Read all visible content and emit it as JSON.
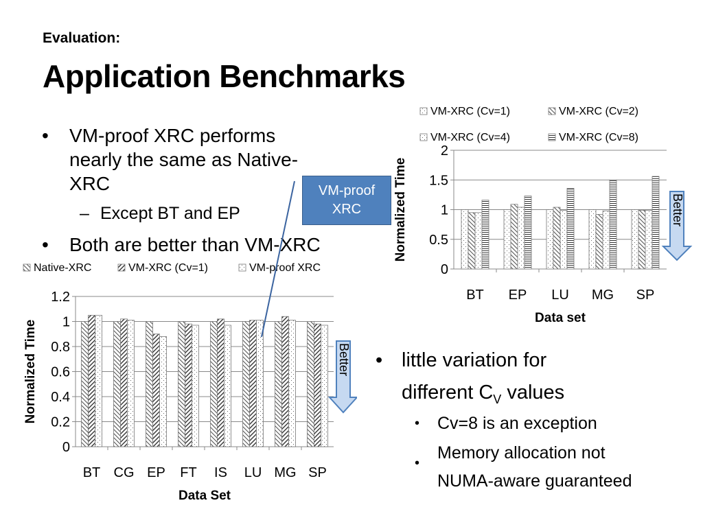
{
  "slide": {
    "subtitle": "Evaluation:",
    "title": "Application Benchmarks",
    "bullets": [
      {
        "text1": "VM-proof XRC performs",
        "text2": "nearly the same as Native-",
        "text3": "XRC"
      },
      {
        "sub": "Except BT and EP"
      },
      {
        "text": "Both are better than VM-XRC"
      }
    ],
    "right_bullets": {
      "line1": "little variation for",
      "line2_pre": "different C",
      "line2_sub": "V",
      "line2_post": " values",
      "sub1": "Cv=8 is an exception",
      "sub2_line1": "Memory allocation not",
      "sub2_line2": "NUMA-aware guaranteed"
    },
    "callout": {
      "line1": "VM-proof",
      "line2": "XRC"
    },
    "better_label": "Better"
  },
  "chart_data": [
    {
      "type": "bar",
      "id": "left",
      "categories": [
        "BT",
        "CG",
        "EP",
        "FT",
        "IS",
        "LU",
        "MG",
        "SP"
      ],
      "series": [
        {
          "name": "Native-XRC",
          "values": [
            1.0,
            1.0,
            1.0,
            1.0,
            1.0,
            1.0,
            1.0,
            1.0
          ]
        },
        {
          "name": "VM-XRC (Cv=1)",
          "values": [
            1.05,
            1.02,
            0.9,
            0.98,
            1.02,
            1.01,
            1.04,
            0.98
          ]
        },
        {
          "name": "VM-proof XRC",
          "values": [
            1.05,
            1.01,
            0.88,
            0.97,
            0.97,
            1.01,
            1.01,
            0.97
          ]
        }
      ],
      "xlabel": "Data Set",
      "ylabel": "Normalized Time",
      "ylim": [
        0,
        1.2
      ],
      "yticks": [
        "0",
        "0.2",
        "0.4",
        "0.6",
        "0.8",
        "1",
        "1.2"
      ],
      "grid": true,
      "legend": "top"
    },
    {
      "type": "bar",
      "id": "right",
      "categories": [
        "BT",
        "EP",
        "LU",
        "MG",
        "SP"
      ],
      "series": [
        {
          "name": "VM-XRC (Cv=1)",
          "values": [
            1.0,
            1.0,
            1.0,
            1.0,
            1.0
          ]
        },
        {
          "name": "VM-XRC (Cv=2)",
          "values": [
            0.95,
            1.09,
            1.04,
            0.92,
            0.99
          ]
        },
        {
          "name": "VM-XRC (Cv=4)",
          "values": [
            0.95,
            1.04,
            0.99,
            0.98,
            0.99
          ]
        },
        {
          "name": "VM-XRC (Cv=8)",
          "values": [
            1.16,
            1.23,
            1.36,
            1.5,
            1.56
          ]
        }
      ],
      "xlabel": "Data set",
      "ylabel": "Normalized Time",
      "ylim": [
        0,
        2
      ],
      "yticks": [
        "0",
        "0.5",
        "1",
        "1.5",
        "2"
      ],
      "grid": true,
      "legend": "top"
    }
  ]
}
